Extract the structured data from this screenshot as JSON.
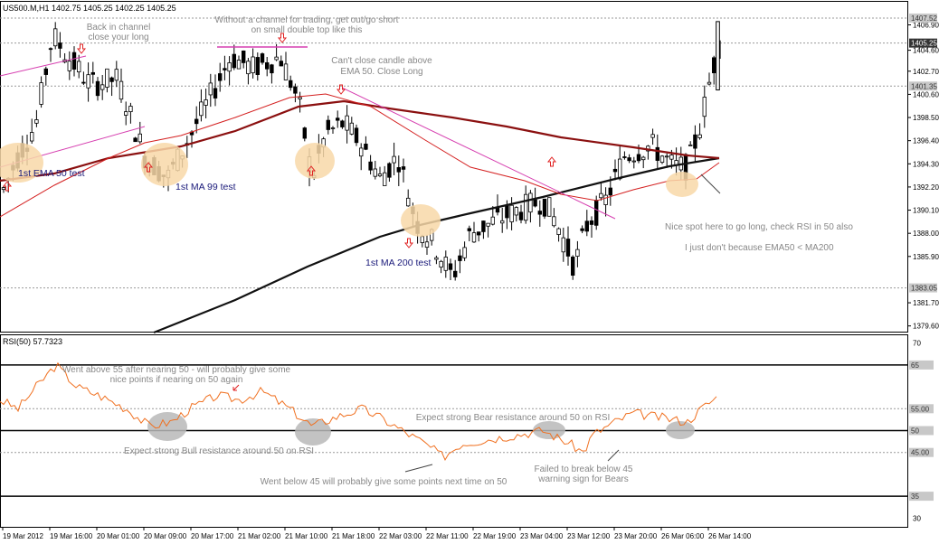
{
  "chart_data": [
    {
      "type": "candlestick",
      "title": "US500.M,H1  1402.75 1405.25 1402.25 1405.25",
      "y_ticks": [
        "1406.90",
        "1404.60",
        "1402.70",
        "1400.60",
        "1398.50",
        "1396.40",
        "1394.30",
        "1392.20",
        "1390.10",
        "1388.00",
        "1385.90",
        "1381.70",
        "1379.60"
      ],
      "price_tags": [
        "1407.52",
        "1405.25",
        "1401.35",
        "1383.05"
      ],
      "y_range": [
        1379.0,
        1408.5
      ],
      "x_ticks": [
        "19 Mar 2012",
        "19 Mar 16:00",
        "20 Mar 01:00",
        "20 Mar 09:00",
        "20 Mar 17:00",
        "21 Mar 02:00",
        "21 Mar 10:00",
        "21 Mar 18:00",
        "22 Mar 03:00",
        "22 Mar 11:00",
        "22 Mar 19:00",
        "23 Mar 04:00",
        "23 Mar 12:00",
        "23 Mar 20:00",
        "26 Mar 06:00",
        "26 Mar 14:00"
      ],
      "annotations": [
        "Back in channel\nclose your long",
        "Without a channel for trading, get out/go short\non small double top like this",
        "Can't close candle above\nEMA 50. Close Long",
        "1st EMA 50 test",
        "1st MA 99 test",
        "1st MA 200 test",
        "Nice spot here to go long, check RSI in 50 also",
        "I just don't because EMA50 < MA200"
      ]
    },
    {
      "type": "line",
      "title": "RSI(50) 57.7323",
      "y_ticks": [
        "70",
        "30"
      ],
      "y_tags": [
        "65",
        "55.00",
        "50",
        "45.00",
        "35"
      ],
      "y_range": [
        28,
        72
      ],
      "annotations": [
        "Went above 55 after nearing 50 - will probably give some\nnice points if nearing on 50 again",
        "Expect strong Bear resistance around 50 on RSI",
        "Expect strong Bull resistance around 50 on RSI",
        "Went below 45 will probably give some points next time on 50",
        "Failed to break below 45\nwarning sign for Bears"
      ]
    }
  ],
  "colors": {
    "ema50": "#d42020",
    "ma99": "#8b1010",
    "ma200": "#111111",
    "channel": "#d63fb0",
    "rsi": "#f07020",
    "annotation_text": "#888888",
    "label_text": "#1a1a7a",
    "highlight_fill": "#f8d8a8",
    "rsi_highlight": "#b8b8b8",
    "arrow": "#e02020"
  }
}
